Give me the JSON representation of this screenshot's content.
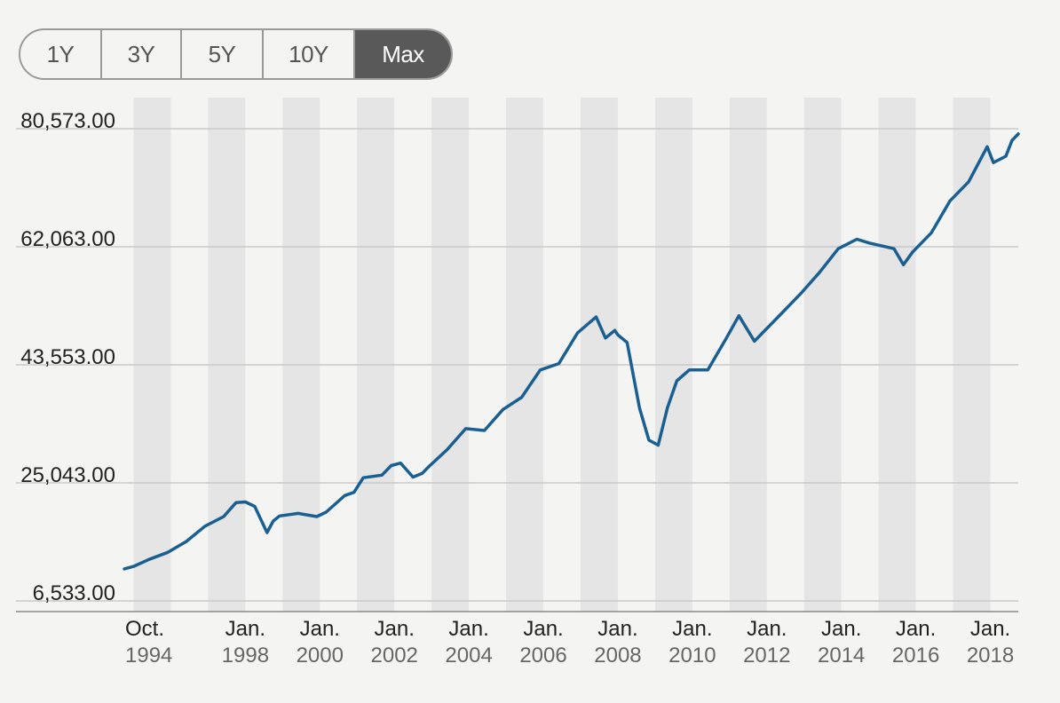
{
  "range_selector": {
    "buttons": [
      {
        "label": "1Y",
        "active": false
      },
      {
        "label": "3Y",
        "active": false
      },
      {
        "label": "5Y",
        "active": false
      },
      {
        "label": "10Y",
        "active": false
      },
      {
        "label": "Max",
        "active": true
      }
    ]
  },
  "colors": {
    "line": "#1a5f92",
    "band": "#e5e5e5",
    "background": "#f4f5f3",
    "grid": "#c9c9c9",
    "active_button": "#595959"
  },
  "chart_data": {
    "type": "line",
    "title": "",
    "xlabel": "",
    "ylabel": "",
    "x_range": [
      "1994-10",
      "2018-10"
    ],
    "ylim": [
      6533,
      80573
    ],
    "y_ticks": [
      {
        "value": 80573,
        "label": "80,573.00"
      },
      {
        "value": 62063,
        "label": "62,063.00"
      },
      {
        "value": 43553,
        "label": "43,553.00"
      },
      {
        "value": 25043,
        "label": "25,043.00"
      },
      {
        "value": 6533,
        "label": "6,533.00"
      }
    ],
    "x_ticks": [
      {
        "date": "1994-10",
        "month": "Oct.",
        "year": "1994"
      },
      {
        "date": "1998-01",
        "month": "Jan.",
        "year": "1998"
      },
      {
        "date": "2000-01",
        "month": "Jan.",
        "year": "2000"
      },
      {
        "date": "2002-01",
        "month": "Jan.",
        "year": "2002"
      },
      {
        "date": "2004-01",
        "month": "Jan.",
        "year": "2004"
      },
      {
        "date": "2006-01",
        "month": "Jan.",
        "year": "2006"
      },
      {
        "date": "2008-01",
        "month": "Jan.",
        "year": "2008"
      },
      {
        "date": "2010-01",
        "month": "Jan.",
        "year": "2010"
      },
      {
        "date": "2012-01",
        "month": "Jan.",
        "year": "2012"
      },
      {
        "date": "2014-01",
        "month": "Jan.",
        "year": "2014"
      },
      {
        "date": "2016-01",
        "month": "Jan.",
        "year": "2016"
      },
      {
        "date": "2018-01",
        "month": "Jan.",
        "year": "2018"
      }
    ],
    "alternating_year_bands": true,
    "grid": true,
    "series": [
      {
        "points": [
          [
            "1994-10",
            10300
          ],
          [
            "1995-01",
            10700
          ],
          [
            "1995-06",
            11800
          ],
          [
            "1995-12",
            12900
          ],
          [
            "1996-06",
            14600
          ],
          [
            "1996-12",
            17000
          ],
          [
            "1997-06",
            18500
          ],
          [
            "1997-10",
            20700
          ],
          [
            "1998-01",
            20800
          ],
          [
            "1998-04",
            20100
          ],
          [
            "1998-08",
            16000
          ],
          [
            "1998-10",
            17800
          ],
          [
            "1998-12",
            18600
          ],
          [
            "1999-06",
            19000
          ],
          [
            "1999-12",
            18500
          ],
          [
            "2000-03",
            19200
          ],
          [
            "2000-09",
            21800
          ],
          [
            "2000-12",
            22300
          ],
          [
            "2001-03",
            24600
          ],
          [
            "2001-09",
            25000
          ],
          [
            "2001-12",
            26500
          ],
          [
            "2002-03",
            26900
          ],
          [
            "2002-07",
            24700
          ],
          [
            "2002-10",
            25300
          ],
          [
            "2002-12",
            26300
          ],
          [
            "2003-06",
            29000
          ],
          [
            "2003-12",
            32300
          ],
          [
            "2004-06",
            32000
          ],
          [
            "2004-12",
            35300
          ],
          [
            "2005-06",
            37200
          ],
          [
            "2005-12",
            41500
          ],
          [
            "2006-06",
            42500
          ],
          [
            "2006-12",
            47300
          ],
          [
            "2007-06",
            49800
          ],
          [
            "2007-09",
            46500
          ],
          [
            "2007-12",
            47700
          ],
          [
            "2008-01",
            47000
          ],
          [
            "2008-04",
            45800
          ],
          [
            "2008-08",
            35500
          ],
          [
            "2008-11",
            30500
          ],
          [
            "2009-02",
            29700
          ],
          [
            "2009-05",
            35600
          ],
          [
            "2009-08",
            39800
          ],
          [
            "2009-12",
            41500
          ],
          [
            "2010-06",
            41500
          ],
          [
            "2010-12",
            46500
          ],
          [
            "2011-04",
            50000
          ],
          [
            "2011-09",
            46000
          ],
          [
            "2011-12",
            47500
          ],
          [
            "2012-06",
            50500
          ],
          [
            "2012-12",
            53500
          ],
          [
            "2013-06",
            56800
          ],
          [
            "2013-12",
            60500
          ],
          [
            "2014-06",
            62000
          ],
          [
            "2014-10",
            61400
          ],
          [
            "2015-06",
            60500
          ],
          [
            "2015-09",
            58000
          ],
          [
            "2015-12",
            60000
          ],
          [
            "2016-06",
            63000
          ],
          [
            "2016-12",
            68000
          ],
          [
            "2017-06",
            71000
          ],
          [
            "2017-12",
            76500
          ],
          [
            "2018-02",
            74000
          ],
          [
            "2018-06",
            75000
          ],
          [
            "2018-08",
            77500
          ],
          [
            "2018-10",
            78500
          ]
        ]
      }
    ]
  }
}
